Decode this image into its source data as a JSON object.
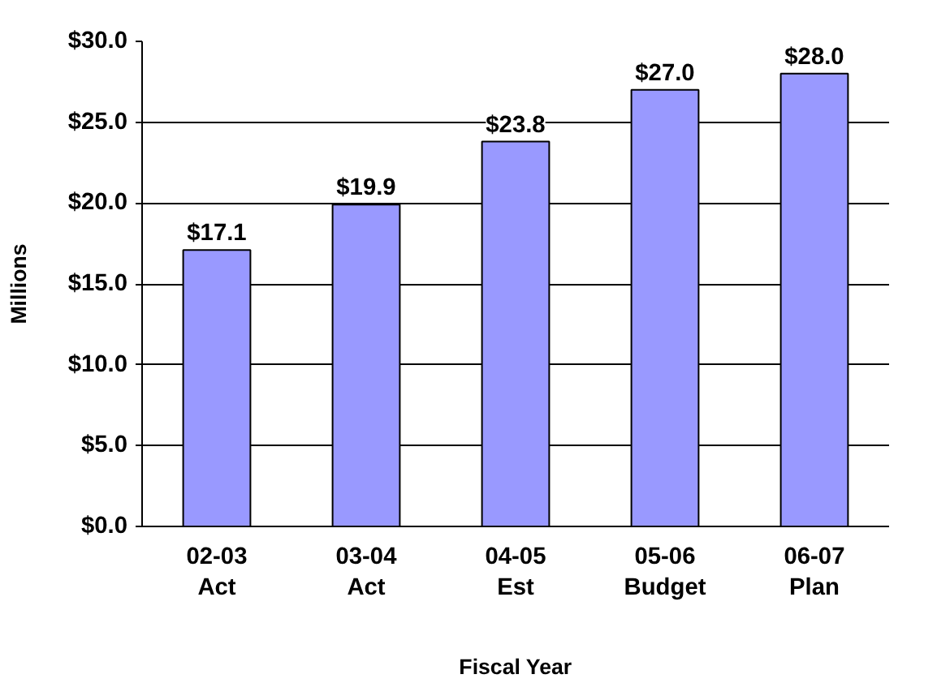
{
  "chart_data": {
    "type": "bar",
    "xlabel": "Fiscal Year",
    "ylabel": "Millions",
    "categories": [
      "02-03\nAct",
      "03-04\nAct",
      "04-05\nEst",
      "05-06\nBudget",
      "06-07\nPlan"
    ],
    "values": [
      17.1,
      19.9,
      23.8,
      27.0,
      28.0
    ],
    "value_labels": [
      "$17.1",
      "$19.9",
      "$23.8",
      "$27.0",
      "$28.0"
    ],
    "color": "#9999ff",
    "ylim": [
      0,
      30
    ],
    "yticks": [
      {
        "value": 0,
        "label": "$0.0"
      },
      {
        "value": 5,
        "label": "$5.0"
      },
      {
        "value": 10,
        "label": "$10.0"
      },
      {
        "value": 15,
        "label": "$15.0"
      },
      {
        "value": 20,
        "label": "$20.0"
      },
      {
        "value": 25,
        "label": "$25.0"
      },
      {
        "value": 30,
        "label": "$30.0"
      }
    ],
    "grid": "y"
  }
}
